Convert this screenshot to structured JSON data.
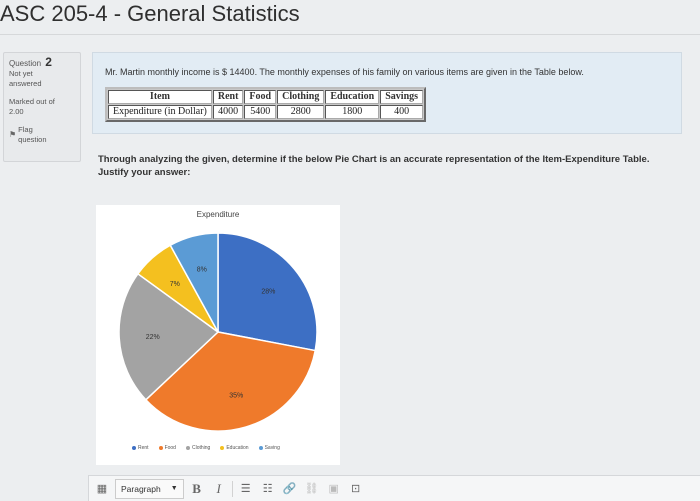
{
  "course": {
    "title": "ASC 205-4 - General Statistics"
  },
  "question_info": {
    "question_label": "Question",
    "question_number": "2",
    "status": "Not yet answered",
    "marked_label": "Marked out of",
    "marked_value": "2.00",
    "flag_label": "Flag question"
  },
  "question": {
    "text": "Mr. Martin monthly income is $ 14400. The monthly expenses of his family on various items are given in the Table below.",
    "table": {
      "headers": [
        "Item",
        "Rent",
        "Food",
        "Clothing",
        "Education",
        "Savings"
      ],
      "row": [
        "Expenditure (in Dollar)",
        "4000",
        "5400",
        "2800",
        "1800",
        "400"
      ]
    },
    "prompt": "Through analyzing the given, determine if the below Pie Chart is an accurate representation of the Item-Expenditure Table. Justify your answer:"
  },
  "chart_data": {
    "type": "pie",
    "title": "Expenditure",
    "legend": [
      "Rent",
      "Food",
      "Clothing",
      "Education",
      "Saving"
    ],
    "slices": [
      {
        "label": "28%",
        "value": 28,
        "color": "#3d6fc4"
      },
      {
        "label": "35%",
        "value": 35,
        "color": "#ef7a2b"
      },
      {
        "label": "22%",
        "value": 22,
        "color": "#a3a3a3"
      },
      {
        "label": "7%",
        "value": 7,
        "color": "#f4c01f"
      },
      {
        "label": "8%",
        "value": 8,
        "color": "#5b9bd5"
      }
    ],
    "legend_colors": [
      "#3d6fc4",
      "#ef7a2b",
      "#a3a3a3",
      "#f4c01f",
      "#5b9bd5"
    ],
    "legend_position": "bottom"
  },
  "editor": {
    "paragraph_label": "Paragraph",
    "bold_label": "B",
    "italic_label": "I"
  }
}
